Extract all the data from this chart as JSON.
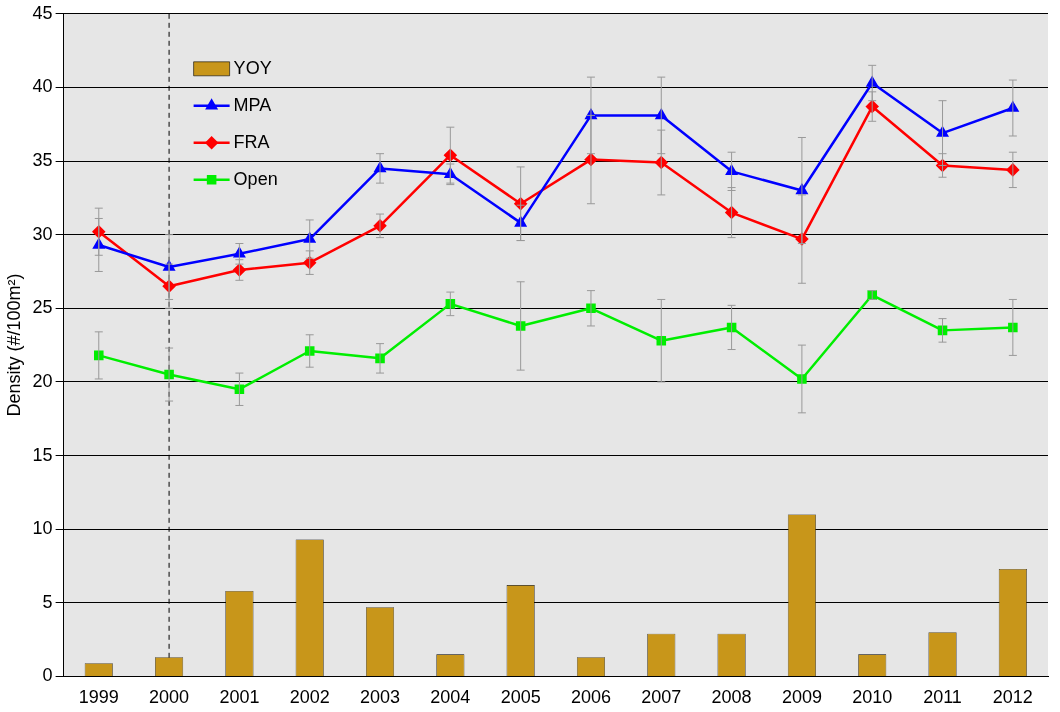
{
  "chart_data": {
    "type": "line",
    "ylabel": "Density (#/100m²)",
    "categories": [
      "1999",
      "2000",
      "2001",
      "2002",
      "2003",
      "2004",
      "2005",
      "2006",
      "2007",
      "2008",
      "2009",
      "2010",
      "2011",
      "2012"
    ],
    "series": [
      {
        "name": "YOY",
        "type": "bar",
        "color": "#c8961a",
        "values": [
          0.9,
          1.3,
          5.8,
          9.3,
          4.7,
          1.5,
          6.2,
          1.3,
          2.9,
          2.9,
          11.0,
          1.5,
          3.0,
          7.3
        ]
      },
      {
        "name": "MPA",
        "marker": "triangle",
        "color": "#0000ff",
        "values": [
          29.3,
          27.8,
          28.7,
          29.7,
          34.5,
          34.1,
          30.8,
          38.1,
          38.1,
          34.3,
          33.0,
          40.3,
          36.9,
          38.6
        ],
        "errors": [
          1.8,
          2.2,
          0.7,
          1.3,
          1.0,
          0.7,
          1.2,
          2.6,
          2.6,
          1.3,
          3.6,
          1.2,
          2.2,
          1.9
        ]
      },
      {
        "name": "FRA",
        "marker": "diamond",
        "color": "#ff0000",
        "values": [
          30.2,
          26.5,
          27.6,
          28.1,
          30.6,
          35.4,
          32.1,
          35.1,
          34.9,
          31.5,
          29.7,
          38.7,
          34.7,
          34.4
        ],
        "errors": [
          1.6,
          1.5,
          0.7,
          0.8,
          0.8,
          1.9,
          2.5,
          3.0,
          2.2,
          1.7,
          3.0,
          1.0,
          0.8,
          1.2
        ]
      },
      {
        "name": "Open",
        "marker": "square",
        "color": "#00ee00",
        "values": [
          21.8,
          20.5,
          19.5,
          22.1,
          21.6,
          25.3,
          23.8,
          25.0,
          22.8,
          23.7,
          20.2,
          25.9,
          23.5,
          23.7
        ],
        "errors": [
          1.6,
          1.8,
          1.1,
          1.1,
          1.0,
          0.8,
          3.0,
          1.2,
          2.8,
          1.5,
          2.3,
          0.3,
          0.8,
          1.9
        ]
      }
    ],
    "ylim": [
      0,
      45
    ],
    "yticks": [
      0,
      5,
      10,
      15,
      20,
      25,
      30,
      35,
      40,
      45
    ],
    "grid": "y",
    "legend": "top left",
    "ref_lines": [
      {
        "axis": "x",
        "value": "2000",
        "line_style": "dashed",
        "color": "#000000"
      }
    ]
  }
}
